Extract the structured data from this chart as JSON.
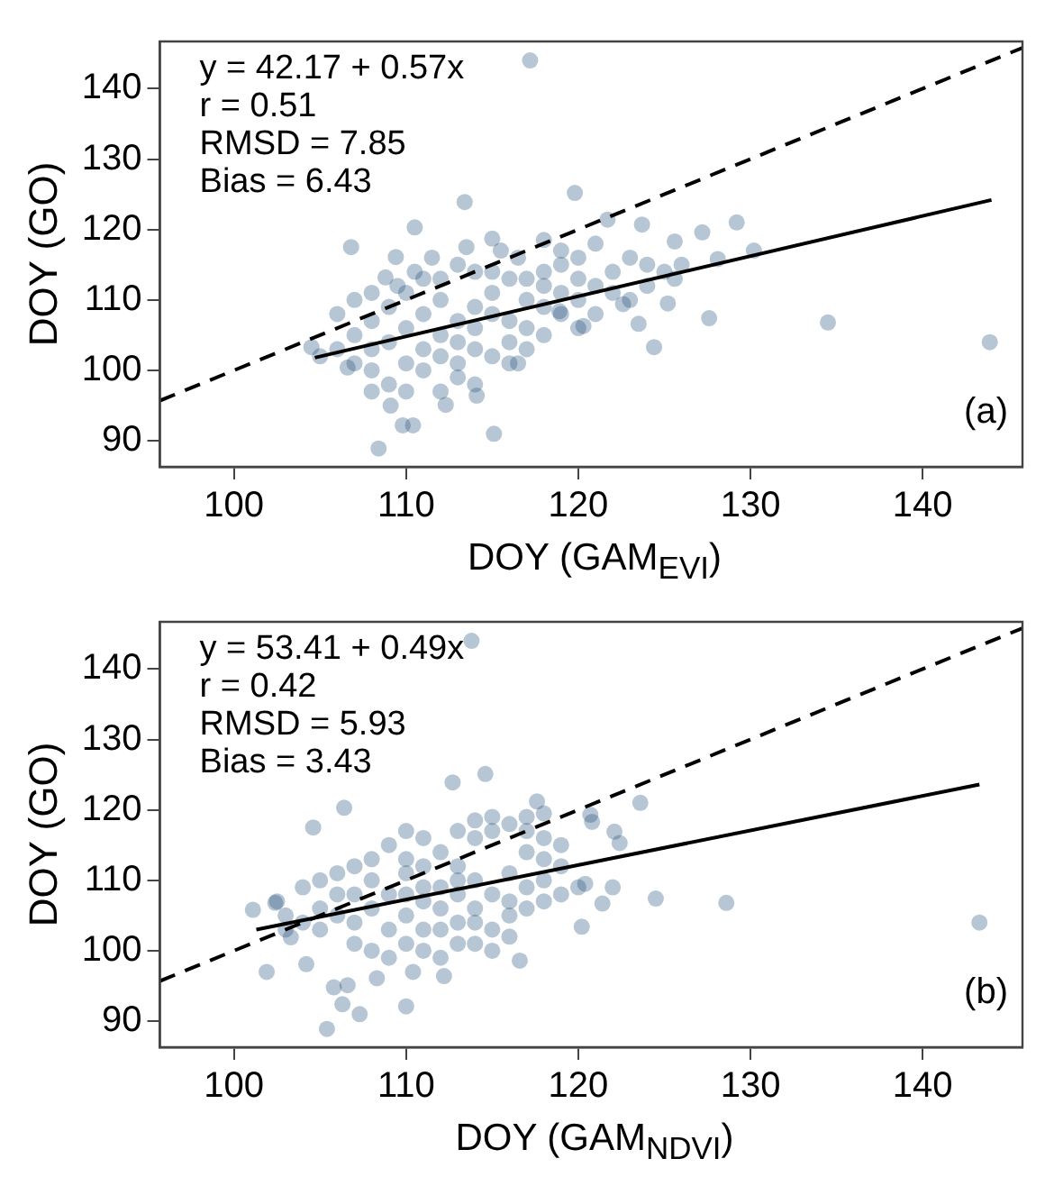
{
  "chart_data": [
    {
      "type": "scatter",
      "title": "(a)",
      "xlabel": "DOY (GAM$_{EVI}$)",
      "ylabel": "DOY (GO)",
      "xlim": [
        95.7,
        145.8
      ],
      "ylim": [
        86.3,
        146.7
      ],
      "xticks": [
        100,
        110,
        120,
        130,
        140
      ],
      "yticks": [
        90,
        100,
        110,
        120,
        130,
        140
      ],
      "annotations": [
        "y = 42.17 + 0.57x",
        "r = 0.51",
        "RMSD = 7.85",
        "Bias = 6.43"
      ],
      "series": [
        {
          "type": "scatter",
          "color": "#1f4e79",
          "marker": "circle",
          "x": [
            117.2,
            119.8,
            113.4,
            110.5,
            106.8,
            123.7,
            129.2,
            127.2,
            121.7,
            130.2,
            128.1,
            125.6,
            134.5,
            143.9,
            127.6,
            124.4,
            123.5,
            125.2,
            108.4,
            115.1,
            112.3,
            109.8,
            110.4,
            109.1,
            108.0,
            114.1,
            104.5,
            106.6,
            116.5,
            109.4,
            108.8,
            115.0,
            121.0,
            125.6,
            122.6,
            120.3,
            118.9,
            109,
            110,
            111,
            111,
            112,
            112,
            113,
            113,
            114,
            114,
            115,
            115,
            116,
            116,
            117,
            117,
            118,
            118,
            119,
            119,
            110,
            111,
            112,
            113,
            114,
            115,
            116,
            108,
            107,
            106,
            105,
            108,
            109,
            110,
            111,
            112,
            113,
            114,
            115,
            116,
            117,
            118,
            119,
            120,
            121,
            120,
            121,
            122,
            122,
            123,
            124,
            123,
            120,
            118,
            117,
            109,
            110,
            113,
            112,
            114,
            107,
            108,
            110.5,
            111.5,
            109.5,
            115.5,
            113.5,
            116.5,
            119,
            120,
            124,
            125,
            126,
            118,
            106,
            107,
            108
          ],
          "values": [
            144.0,
            125.2,
            123.9,
            120.3,
            117.5,
            120.7,
            121.0,
            119.6,
            121.4,
            117.0,
            115.8,
            118.3,
            106.8,
            104.0,
            107.4,
            103.3,
            106.6,
            109.5,
            88.9,
            91.0,
            95.1,
            92.2,
            92.2,
            95.0,
            97.0,
            96.4,
            103.3,
            100.4,
            101.0,
            116.1,
            113.2,
            118.7,
            118.0,
            113.0,
            109.4,
            106.3,
            108.4,
            104,
            106,
            103,
            108,
            105,
            110,
            107,
            104,
            109,
            106,
            108,
            111,
            107,
            104,
            110,
            106,
            109,
            112,
            108,
            111,
            101,
            100,
            102,
            101,
            103,
            102,
            101,
            103,
            105,
            103,
            102,
            107,
            109,
            111,
            113,
            113,
            115,
            114,
            114,
            113,
            113,
            114,
            115,
            113,
            112,
            110,
            108,
            111,
            114,
            116,
            112,
            110,
            106,
            105,
            103,
            98,
            97,
            99,
            97,
            98,
            101,
            100,
            114,
            116,
            112,
            117,
            117.5,
            116,
            117,
            116,
            115,
            114,
            115,
            118.5,
            108,
            110,
            111
          ]
        },
        {
          "type": "line",
          "color": "#000000",
          "marker": "none",
          "line_style": "solid",
          "x": [
            104.7,
            144.0
          ],
          "values": [
            101.8,
            124.2
          ]
        },
        {
          "type": "line",
          "color": "#000000",
          "marker": "none",
          "line_style": "dashed",
          "x": [
            95.7,
            145.8
          ],
          "values": [
            95.7,
            145.8
          ]
        }
      ]
    },
    {
      "type": "scatter",
      "title": "(b)",
      "xlabel": "DOY (GAM$_{NDVI}$)",
      "ylabel": "DOY (GO)",
      "xlim": [
        95.7,
        145.8
      ],
      "ylim": [
        86.3,
        146.7
      ],
      "xticks": [
        100,
        110,
        120,
        130,
        140
      ],
      "yticks": [
        90,
        100,
        110,
        120,
        130,
        140
      ],
      "annotations": [
        "y = 53.41 + 0.49x",
        "r = 0.42",
        "RMSD = 5.93",
        "Bias = 3.43"
      ],
      "series": [
        {
          "type": "scatter",
          "color": "#1f4e79",
          "marker": "circle",
          "x": [
            113.8,
            114.6,
            112.7,
            106.4,
            104.6,
            117.6,
            123.6,
            120.7,
            120.8,
            122.1,
            122.4,
            122.0,
            124.5,
            128.6,
            143.3,
            120.2,
            116.6,
            101.1,
            101.9,
            104.2,
            105.4,
            107.3,
            110.0,
            106.3,
            105.8,
            106.6,
            112.2,
            108.3,
            110.4,
            102.4,
            103.3,
            121.4,
            120.4,
            104,
            105,
            105,
            106,
            106,
            107,
            107,
            108,
            108,
            109,
            109,
            110,
            110,
            111,
            111,
            111,
            112,
            112,
            113,
            113,
            113,
            114,
            114,
            115,
            115,
            116,
            116,
            117,
            117,
            118,
            118,
            119,
            119,
            108,
            109,
            110,
            111,
            112,
            113,
            114,
            115,
            116,
            107,
            108,
            109,
            110,
            111,
            112,
            113,
            114,
            115,
            116,
            117,
            118,
            106,
            107,
            103,
            102.5,
            104,
            110,
            112,
            114,
            116,
            117,
            118,
            119,
            120,
            117,
            118,
            114,
            115,
            110,
            105,
            103,
            113,
            111
          ],
          "values": [
            144.0,
            125.1,
            123.9,
            120.3,
            117.5,
            121.2,
            121.0,
            119.3,
            118.3,
            116.9,
            115.3,
            109.0,
            107.4,
            106.8,
            104.0,
            103.4,
            98.6,
            105.8,
            97.0,
            98.1,
            88.9,
            91.0,
            92.1,
            92.4,
            94.8,
            95.1,
            96.4,
            96.1,
            97.0,
            106.8,
            101.9,
            106.7,
            109.5,
            104,
            106,
            103,
            105,
            108,
            104,
            101,
            106,
            110,
            103,
            108,
            105,
            111,
            107,
            103,
            112,
            106,
            109,
            104,
            108,
            112,
            106,
            110,
            108,
            103,
            107,
            111,
            109,
            114,
            110,
            113,
            112,
            115,
            100,
            99,
            101,
            100,
            99,
            101,
            101,
            100,
            102,
            112,
            113,
            115,
            113,
            116,
            114,
            117,
            116,
            117,
            118,
            117,
            116,
            111,
            108,
            105,
            107,
            109,
            108,
            103,
            104,
            105,
            106,
            107,
            108,
            109,
            119,
            119.5,
            118.5,
            119,
            117,
            110,
            103,
            110,
            109
          ]
        },
        {
          "type": "line",
          "color": "#000000",
          "marker": "none",
          "line_style": "solid",
          "x": [
            101.3,
            143.3
          ],
          "values": [
            103.0,
            123.6
          ]
        },
        {
          "type": "line",
          "color": "#000000",
          "marker": "none",
          "line_style": "dashed",
          "x": [
            95.7,
            145.8
          ],
          "values": [
            95.7,
            145.8
          ]
        }
      ]
    }
  ]
}
